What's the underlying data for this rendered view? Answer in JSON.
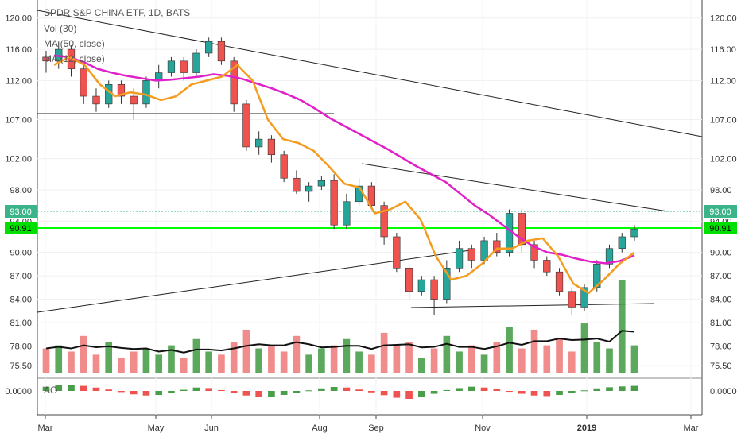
{
  "header": {
    "title": "SPDR S&P CHINA ETF, 1D, BATS",
    "legend": [
      "Vol (30)",
      "MA (50, close)",
      "MA (12, close)"
    ],
    "oscillator_label": "AO"
  },
  "colors": {
    "up": "#26a69a",
    "down": "#ef5350",
    "vol_up": "#4a9e4a",
    "vol_down": "#f08080",
    "ma50": "#e020c8",
    "ma12": "#f39c20",
    "price_tag": "#3cb48a",
    "support": "#00ff00",
    "trendline": "#222222"
  },
  "price_tags": {
    "last": "93.00",
    "level": "90.91"
  },
  "chart_data": {
    "type": "candlestick",
    "title": "SPDR S&P CHINA ETF, 1D, BATS",
    "y_axis_ticks": [
      "120.00",
      "116.00",
      "112.00",
      "107.00",
      "102.00",
      "98.00",
      "94.00",
      "90.00",
      "87.00",
      "84.00",
      "81.00",
      "78.00",
      "75.50"
    ],
    "osc_axis_tick": "0.0000",
    "x_axis_ticks": [
      "Mar",
      "May",
      "Jun",
      "Aug",
      "Sep",
      "Nov",
      "2019",
      "Mar"
    ],
    "ylim": [
      74.5,
      121.5
    ],
    "last_price": 93.0,
    "horizontal_level": 90.91,
    "series": [
      {
        "name": "MA (50, close)",
        "values": [
          115.2,
          115.0,
          114.4,
          113.5,
          113.0,
          112.6,
          112.3,
          112.0,
          112.1,
          112.3,
          112.5,
          112.8,
          112.6,
          112.2,
          111.6,
          111.0,
          110.3,
          109.5,
          108.4,
          107.2,
          106.2,
          105.2,
          104.2,
          103.2,
          102.1,
          101.0,
          100.0,
          99.0,
          97.5,
          96.0,
          94.8,
          93.4,
          92.0,
          90.8,
          90.0,
          89.7,
          89.2,
          88.8,
          88.6,
          88.9,
          89.6
        ]
      },
      {
        "name": "MA (12, close)",
        "values": [
          114.0,
          115.0,
          114.0,
          111.5,
          110.0,
          110.5,
          110.2,
          109.5,
          110.0,
          111.5,
          112.0,
          112.5,
          114.0,
          112.0,
          107.0,
          104.5,
          104.0,
          103.0,
          101.0,
          98.8,
          98.3,
          95.0,
          95.5,
          96.5,
          94.2,
          89.5,
          86.5,
          87.0,
          88.5,
          90.5,
          90.5,
          91.5,
          91.8,
          89.5,
          86.0,
          84.8,
          86.5,
          88.5,
          90.0
        ]
      }
    ],
    "candles": [
      [
        115,
        114.5,
        115.8,
        113
      ],
      [
        114.5,
        116,
        117,
        113.5
      ],
      [
        116,
        113.5,
        116.5,
        112.5
      ],
      [
        113.5,
        110,
        114,
        109
      ],
      [
        110,
        109,
        111,
        108
      ],
      [
        109,
        111.5,
        112,
        108.5
      ],
      [
        111.5,
        110,
        112,
        109
      ],
      [
        110,
        109,
        111,
        107
      ],
      [
        109,
        112,
        112.5,
        108.5
      ],
      [
        112,
        113,
        114,
        111
      ],
      [
        113,
        114.5,
        115,
        112.5
      ],
      [
        114.5,
        113,
        115,
        112
      ],
      [
        113,
        115.5,
        116,
        112.5
      ],
      [
        115.5,
        117,
        117.5,
        115
      ],
      [
        117,
        114.5,
        117.5,
        114
      ],
      [
        114.5,
        109,
        115,
        108
      ],
      [
        109,
        103.5,
        109.5,
        103
      ],
      [
        103.5,
        104.5,
        105.5,
        102.5
      ],
      [
        104.5,
        102.5,
        105,
        101.5
      ],
      [
        102.5,
        99.5,
        103,
        99
      ],
      [
        99.5,
        97.8,
        100.5,
        97.5
      ],
      [
        97.8,
        98.5,
        99,
        96.5
      ],
      [
        98.5,
        99.2,
        99.8,
        98
      ],
      [
        99.2,
        93.5,
        100,
        93
      ],
      [
        93.5,
        96.5,
        97.5,
        93
      ],
      [
        96.5,
        98.5,
        99.5,
        96
      ],
      [
        98.5,
        96,
        99,
        95.5
      ],
      [
        96,
        92,
        96.5,
        91
      ],
      [
        92,
        88,
        92.5,
        87.5
      ],
      [
        88,
        85,
        88.5,
        84
      ],
      [
        85,
        86.5,
        87,
        84.5
      ],
      [
        86.5,
        84,
        87,
        82
      ],
      [
        84,
        88,
        89,
        83.5
      ],
      [
        88,
        90.5,
        91.5,
        87.5
      ],
      [
        90.5,
        89,
        91,
        88
      ],
      [
        89,
        91.5,
        92,
        88.5
      ],
      [
        91.5,
        90,
        92.5,
        89.5
      ],
      [
        90,
        95,
        95.5,
        89.5
      ],
      [
        95,
        91,
        95.5,
        90
      ],
      [
        91,
        89,
        91.5,
        88
      ],
      [
        89,
        87.5,
        89.5,
        87
      ],
      [
        87.5,
        85,
        88,
        84.5
      ],
      [
        85,
        83,
        85.5,
        82
      ],
      [
        83,
        85.5,
        86,
        82.5
      ],
      [
        85.5,
        88.5,
        89,
        85
      ],
      [
        88.5,
        90.5,
        91,
        88
      ],
      [
        90.5,
        92,
        92.5,
        90
      ],
      [
        92,
        93,
        93.5,
        91.5
      ]
    ],
    "volume": [
      8,
      9,
      7,
      12,
      6,
      10,
      5,
      7,
      8,
      6,
      9,
      5,
      11,
      7,
      6,
      10,
      14,
      8,
      9,
      7,
      12,
      6,
      8,
      9,
      11,
      7,
      6,
      13,
      9,
      10,
      5,
      8,
      12,
      7,
      9,
      6,
      10,
      15,
      8,
      14,
      9,
      11,
      7,
      16,
      10,
      8,
      30,
      9
    ],
    "ao": [
      1.5,
      2,
      2.2,
      1.8,
      1.2,
      0.5,
      -0.4,
      -1.2,
      -1.6,
      -1.4,
      -0.8,
      0.4,
      1.2,
      1.0,
      0.3,
      -0.6,
      -1.6,
      -2.2,
      -2.0,
      -1.4,
      -0.8,
      0.2,
      0.9,
      1.4,
      1.2,
      0.5,
      -0.5,
      -1.5,
      -2.4,
      -2.8,
      -2.2,
      -1.0,
      0.3,
      1.0,
      1.5,
      1.2,
      0.6,
      -0.3,
      -1.0,
      -1.6,
      -1.8,
      -1.4,
      -0.6,
      0.2,
      0.9,
      1.3,
      1.6,
      1.8
    ]
  }
}
